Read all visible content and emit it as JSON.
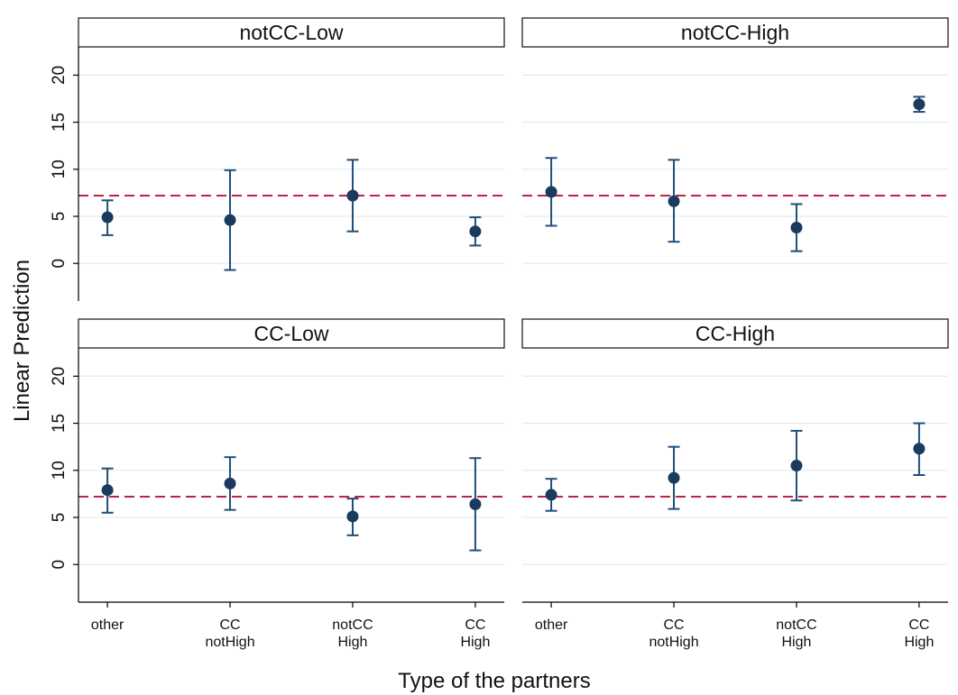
{
  "chart_data": {
    "type": "scatter",
    "subtype": "dot-with-error-bars",
    "ylabel": "Linear Prediction",
    "xlabel": "Type of the partners",
    "ylim": [
      -4,
      23
    ],
    "yticks": [
      0,
      5,
      10,
      15,
      20
    ],
    "categories": [
      [
        "other"
      ],
      [
        "CC",
        "notHigh"
      ],
      [
        "notCC",
        "High"
      ],
      [
        "CC",
        "High"
      ]
    ],
    "reference_line": {
      "y": 7.2,
      "style": "dashed",
      "color": "#c21f4c"
    },
    "grid": true,
    "colors": {
      "marker": "#1a3a5e",
      "errorbar": "#1f4e79",
      "grid": "#e4ecef",
      "axis": "#000000"
    },
    "panels": [
      {
        "title": "notCC-Low",
        "points": [
          {
            "value": 4.9,
            "lower": 3.0,
            "upper": 6.7
          },
          {
            "value": 4.6,
            "lower": -0.7,
            "upper": 9.9
          },
          {
            "value": 7.2,
            "lower": 3.4,
            "upper": 11.0
          },
          {
            "value": 3.4,
            "lower": 1.9,
            "upper": 4.9
          }
        ]
      },
      {
        "title": "notCC-High",
        "points": [
          {
            "value": 7.6,
            "lower": 4.0,
            "upper": 11.2
          },
          {
            "value": 6.6,
            "lower": 2.3,
            "upper": 11.0
          },
          {
            "value": 3.8,
            "lower": 1.3,
            "upper": 6.3
          },
          {
            "value": 16.9,
            "lower": 16.1,
            "upper": 17.7
          }
        ]
      },
      {
        "title": "CC-Low",
        "points": [
          {
            "value": 7.9,
            "lower": 5.5,
            "upper": 10.2
          },
          {
            "value": 8.6,
            "lower": 5.8,
            "upper": 11.4
          },
          {
            "value": 5.1,
            "lower": 3.1,
            "upper": 7.0
          },
          {
            "value": 6.4,
            "lower": 1.5,
            "upper": 11.3
          }
        ]
      },
      {
        "title": "CC-High",
        "points": [
          {
            "value": 7.4,
            "lower": 5.7,
            "upper": 9.1
          },
          {
            "value": 9.2,
            "lower": 5.9,
            "upper": 12.5
          },
          {
            "value": 10.5,
            "lower": 6.8,
            "upper": 14.2
          },
          {
            "value": 12.3,
            "lower": 9.5,
            "upper": 15.0
          }
        ]
      }
    ]
  }
}
